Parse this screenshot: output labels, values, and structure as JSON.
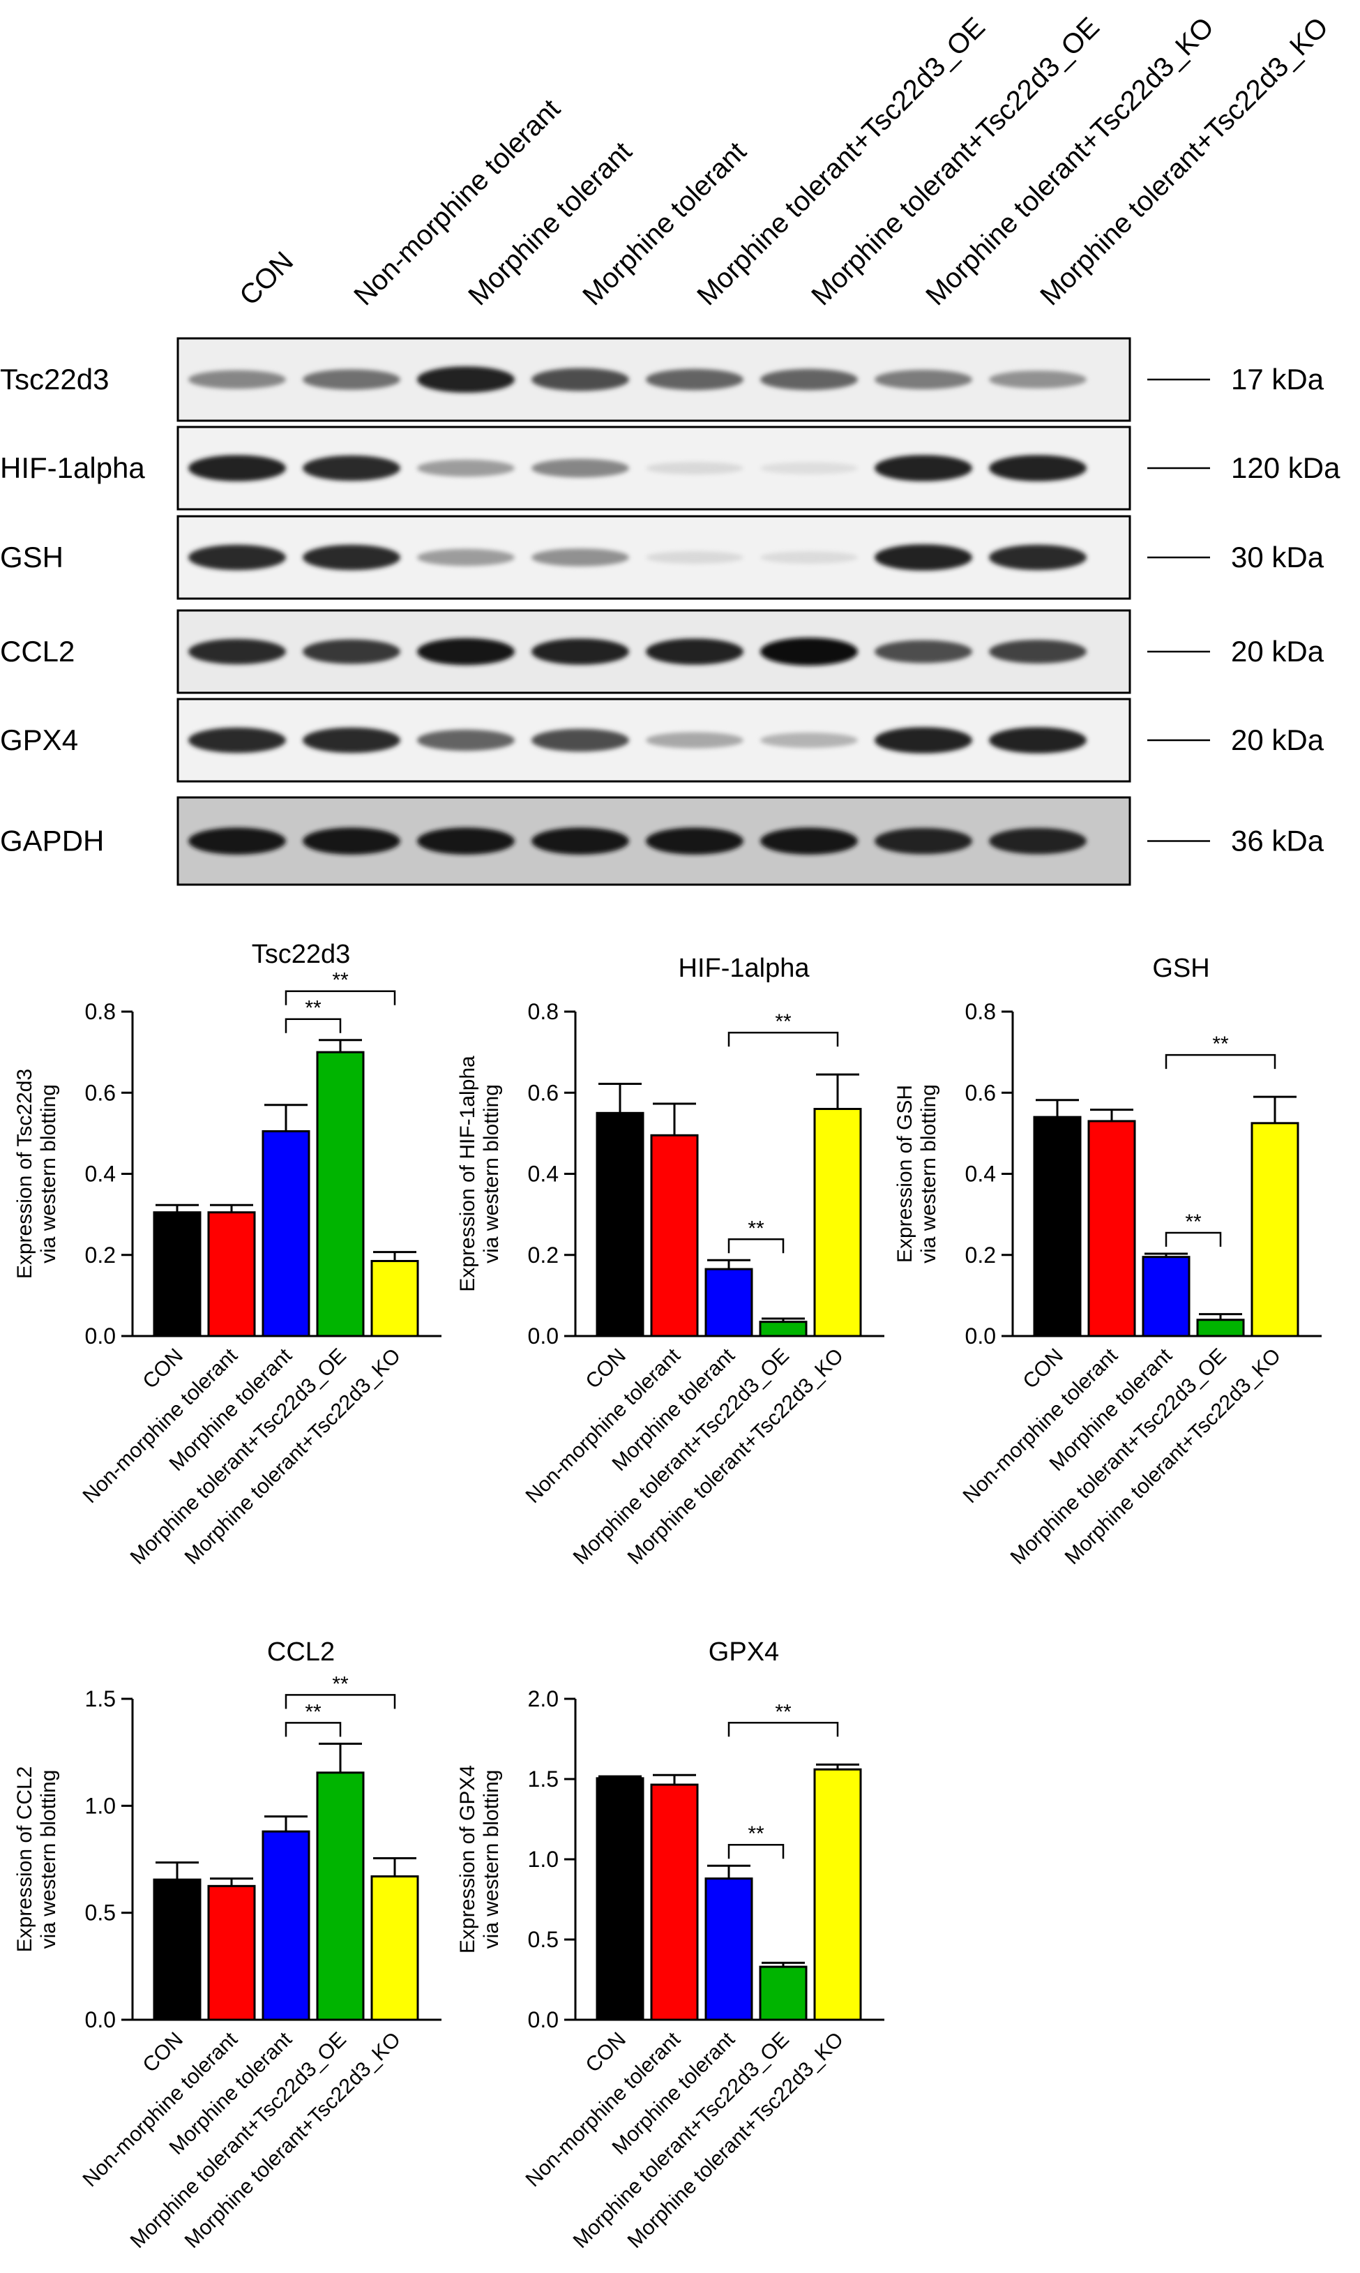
{
  "blot": {
    "lanes": [
      "CON",
      "Non-morphine tolerant",
      "Morphine tolerant",
      "Morphine tolerant",
      "Morphine tolerant+Tsc22d3_OE",
      "Morphine tolerant+Tsc22d3_OE",
      "Morphine tolerant+Tsc22d3_KO",
      "Morphine tolerant+Tsc22d3_KO"
    ],
    "rows": [
      {
        "protein": "Tsc22d3",
        "mw": "17 kDa",
        "intensity": [
          0.45,
          0.55,
          0.9,
          0.7,
          0.6,
          0.6,
          0.5,
          0.4
        ],
        "background": "#eeeeee"
      },
      {
        "protein": "HIF-1alpha",
        "mw": "120 kDa",
        "intensity": [
          0.9,
          0.85,
          0.35,
          0.45,
          0.08,
          0.06,
          0.9,
          0.9
        ],
        "background": "#f2f2f2"
      },
      {
        "protein": "GSH",
        "mw": "30 kDa",
        "intensity": [
          0.85,
          0.85,
          0.35,
          0.4,
          0.08,
          0.07,
          0.9,
          0.85
        ],
        "background": "#f2f2f2"
      },
      {
        "protein": "CCL2",
        "mw": "20 kDa",
        "intensity": [
          0.85,
          0.8,
          0.95,
          0.9,
          0.9,
          1.0,
          0.7,
          0.75
        ],
        "background": "#eaeaea"
      },
      {
        "protein": "GPX4",
        "mw": "20 kDa",
        "intensity": [
          0.85,
          0.85,
          0.6,
          0.7,
          0.3,
          0.25,
          0.9,
          0.9
        ],
        "background": "#f2f2f2"
      },
      {
        "protein": "GAPDH",
        "mw": "36 kDa",
        "intensity": [
          0.95,
          0.95,
          0.95,
          0.95,
          0.95,
          0.95,
          0.9,
          0.9
        ],
        "background": "#c8c8c8"
      }
    ]
  },
  "colors": {
    "CON": "#000000",
    "Non-morphine tolerant": "#ff0000",
    "Morphine tolerant": "#0000ff",
    "Morphine tolerant+Tsc22d3_OE": "#00b400",
    "Morphine tolerant+Tsc22d3_KO": "#ffff00"
  },
  "chart_data": [
    {
      "type": "bar",
      "title": "Tsc22d3",
      "ylabel": [
        "Expression of Tsc22d3",
        "via western blotting"
      ],
      "categories": [
        "CON",
        "Non-morphine tolerant",
        "Morphine tolerant",
        "Morphine tolerant+Tsc22d3_OE",
        "Morphine tolerant+Tsc22d3_KO"
      ],
      "values": [
        0.305,
        0.305,
        0.505,
        0.7,
        0.185
      ],
      "errors": [
        0.018,
        0.018,
        0.065,
        0.03,
        0.022
      ],
      "ylim": [
        0,
        0.8
      ],
      "yticks": [
        "0.0",
        "0.2",
        "0.4",
        "0.6",
        "0.8"
      ],
      "significance": [
        {
          "from": 2,
          "to": 3,
          "label": "**"
        },
        {
          "from": 2,
          "to": 4,
          "label": "**"
        }
      ]
    },
    {
      "type": "bar",
      "title": "HIF-1alpha",
      "ylabel": [
        "Expression of HIF-1alpha",
        "via western blotting"
      ],
      "categories": [
        "CON",
        "Non-morphine tolerant",
        "Morphine tolerant",
        "Morphine tolerant+Tsc22d3_OE",
        "Morphine tolerant+Tsc22d3_KO"
      ],
      "values": [
        0.55,
        0.495,
        0.165,
        0.035,
        0.56
      ],
      "errors": [
        0.072,
        0.078,
        0.022,
        0.008,
        0.085
      ],
      "ylim": [
        0,
        0.8
      ],
      "yticks": [
        "0.0",
        "0.2",
        "0.4",
        "0.6",
        "0.8"
      ],
      "significance": [
        {
          "from": 2,
          "to": 3,
          "label": "**"
        },
        {
          "from": 2,
          "to": 4,
          "label": "**"
        }
      ]
    },
    {
      "type": "bar",
      "title": "GSH",
      "ylabel": [
        "Expression of GSH",
        "via western blotting"
      ],
      "categories": [
        "CON",
        "Non-morphine tolerant",
        "Morphine tolerant",
        "Morphine tolerant+Tsc22d3_OE",
        "Morphine tolerant+Tsc22d3_KO"
      ],
      "values": [
        0.54,
        0.53,
        0.195,
        0.04,
        0.525
      ],
      "errors": [
        0.042,
        0.028,
        0.008,
        0.014,
        0.065
      ],
      "ylim": [
        0,
        0.8
      ],
      "yticks": [
        "0.0",
        "0.2",
        "0.4",
        "0.6",
        "0.8"
      ],
      "significance": [
        {
          "from": 2,
          "to": 3,
          "label": "**"
        },
        {
          "from": 2,
          "to": 4,
          "label": "**"
        }
      ]
    },
    {
      "type": "bar",
      "title": "CCL2",
      "ylabel": [
        "Expression of CCL2",
        "via western blotting"
      ],
      "categories": [
        "CON",
        "Non-morphine tolerant",
        "Morphine tolerant",
        "Morphine tolerant+Tsc22d3_OE",
        "Morphine tolerant+Tsc22d3_KO"
      ],
      "values": [
        0.655,
        0.625,
        0.88,
        1.155,
        0.67
      ],
      "errors": [
        0.08,
        0.035,
        0.07,
        0.135,
        0.085
      ],
      "ylim": [
        0,
        1.5
      ],
      "yticks": [
        "0.0",
        "0.5",
        "1.0",
        "1.5"
      ],
      "significance": [
        {
          "from": 2,
          "to": 3,
          "label": "**"
        },
        {
          "from": 2,
          "to": 4,
          "label": "**"
        }
      ]
    },
    {
      "type": "bar",
      "title": "GPX4",
      "ylabel": [
        "Expression of GPX4",
        "via western blotting"
      ],
      "categories": [
        "CON",
        "Non-morphine tolerant",
        "Morphine tolerant",
        "Morphine tolerant+Tsc22d3_OE",
        "Morphine tolerant+Tsc22d3_KO"
      ],
      "values": [
        1.505,
        1.465,
        0.88,
        0.33,
        1.56
      ],
      "errors": [
        0.012,
        0.06,
        0.08,
        0.025,
        0.03
      ],
      "ylim": [
        0,
        2.0
      ],
      "yticks": [
        "0.0",
        "0.5",
        "1.0",
        "1.5",
        "2.0"
      ],
      "significance": [
        {
          "from": 2,
          "to": 3,
          "label": "**"
        },
        {
          "from": 2,
          "to": 4,
          "label": "**"
        }
      ]
    }
  ]
}
